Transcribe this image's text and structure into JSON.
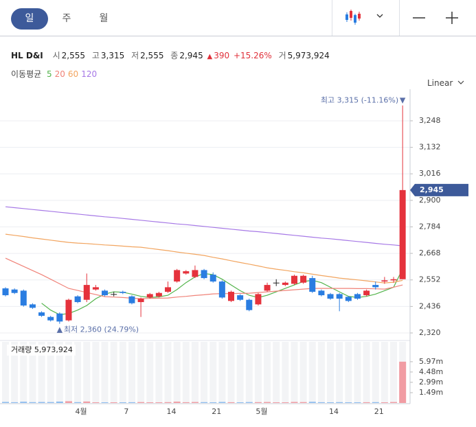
{
  "tabs": [
    "일",
    "주",
    "월"
  ],
  "scale_mode": "Linear",
  "header": {
    "name": "HL D&I",
    "items": [
      {
        "label": "시",
        "value": "2,555"
      },
      {
        "label": "고",
        "value": "3,315"
      },
      {
        "label": "저",
        "value": "2,555"
      },
      {
        "label": "종",
        "value": "2,945"
      }
    ],
    "change_arrow": "▲",
    "change": "390",
    "change_pct": "+15.26%",
    "volume_label": "거",
    "volume": "5,973,924"
  },
  "chart_data": {
    "type": "candlestick",
    "categories": [
      null,
      null,
      null,
      null,
      null,
      null,
      null,
      null,
      "4월",
      null,
      null,
      null,
      null,
      "7",
      null,
      null,
      null,
      null,
      "14",
      null,
      null,
      null,
      null,
      "21",
      null,
      null,
      null,
      null,
      "5월",
      null,
      null,
      null,
      null,
      null,
      null,
      null,
      "14",
      null,
      null,
      null,
      null,
      "21",
      null,
      null,
      null
    ],
    "open": [
      2515,
      2510,
      2505,
      2445,
      2410,
      2390,
      2405,
      2375,
      2480,
      2465,
      2510,
      2505,
      2490,
      2500,
      2480,
      2455,
      2475,
      2480,
      2500,
      2545,
      2580,
      2565,
      2595,
      2575,
      2545,
      2460,
      2485,
      2465,
      2445,
      2505,
      2540,
      2530,
      2535,
      2540,
      2560,
      2505,
      2490,
      2490,
      2478,
      2490,
      2485,
      2530,
      2545,
      2550,
      2555
    ],
    "high": [
      2520,
      2515,
      2510,
      2450,
      2415,
      2395,
      2410,
      2470,
      2485,
      2580,
      2530,
      2510,
      2500,
      2505,
      2485,
      2475,
      2495,
      2500,
      2545,
      2600,
      2595,
      2615,
      2600,
      2585,
      2550,
      2505,
      2490,
      2470,
      2495,
      2540,
      2555,
      2545,
      2575,
      2575,
      2570,
      2510,
      2495,
      2495,
      2482,
      2495,
      2510,
      2545,
      2565,
      2565,
      3315
    ],
    "low": [
      2480,
      2490,
      2435,
      2425,
      2390,
      2370,
      2360,
      2370,
      2450,
      2455,
      2505,
      2480,
      2480,
      2490,
      2445,
      2390,
      2470,
      2475,
      2495,
      2540,
      2575,
      2560,
      2555,
      2540,
      2470,
      2455,
      2460,
      2415,
      2440,
      2500,
      2525,
      2525,
      2530,
      2535,
      2495,
      2480,
      2465,
      2415,
      2455,
      2465,
      2480,
      2510,
      2535,
      2540,
      2555
    ],
    "close": [
      2485,
      2495,
      2440,
      2430,
      2395,
      2375,
      2370,
      2465,
      2455,
      2530,
      2520,
      2485,
      2490,
      2495,
      2450,
      2470,
      2490,
      2495,
      2520,
      2595,
      2590,
      2595,
      2560,
      2545,
      2475,
      2500,
      2465,
      2420,
      2490,
      2530,
      2540,
      2540,
      2570,
      2570,
      2500,
      2485,
      2470,
      2470,
      2460,
      2470,
      2505,
      2520,
      2550,
      2555,
      2945
    ],
    "up_color": "#e5323c",
    "down_color": "#2a7de1",
    "flat_color": "#222222",
    "ylim": [
      2305,
      3356
    ],
    "yticks": [
      {
        "value": 2320,
        "label": "2,320"
      },
      {
        "value": 2436,
        "label": "2,436"
      },
      {
        "value": 2552,
        "label": "2,552"
      },
      {
        "value": 2668,
        "label": "2,668"
      },
      {
        "value": 2784,
        "label": "2,784"
      },
      {
        "value": 2900,
        "label": "2,900"
      },
      {
        "value": 3016,
        "label": "3,016"
      },
      {
        "value": 3132,
        "label": "3,132"
      },
      {
        "value": 3248,
        "label": "3,248"
      }
    ],
    "grid": true,
    "moving_average_label": "이동평균",
    "series": [
      {
        "name": "5",
        "color": "#52b34a",
        "values": [
          null,
          null,
          null,
          null,
          2450,
          2420,
          2400,
          2405,
          2420,
          2440,
          2470,
          2490,
          2500,
          2498,
          2490,
          2480,
          2475,
          2478,
          2485,
          2510,
          2540,
          2565,
          2580,
          2575,
          2555,
          2530,
          2505,
          2485,
          2475,
          2485,
          2500,
          2515,
          2530,
          2545,
          2550,
          2540,
          2520,
          2500,
          2480,
          2475,
          2480,
          2490,
          2505,
          2520,
          2600
        ]
      },
      {
        "name": "20",
        "color": "#f08278",
        "values": [
          2647,
          2629,
          2611,
          2593,
          2575,
          2555,
          2535,
          2515,
          2506,
          2497,
          2488,
          2479,
          2477,
          2475,
          2472,
          2470,
          2471,
          2472,
          2473,
          2477,
          2480,
          2484,
          2487,
          2491,
          2492,
          2492,
          2493,
          2494,
          2497,
          2500,
          2503,
          2506,
          2509,
          2512,
          2515,
          2515,
          2515,
          2515,
          2515,
          2514,
          2514,
          2513,
          2512,
          2520,
          2530
        ]
      },
      {
        "name": "60",
        "color": "#f2a45e",
        "values": [
          2752,
          2747,
          2742,
          2736,
          2731,
          2726,
          2721,
          2716,
          2713,
          2711,
          2708,
          2705,
          2703,
          2700,
          2697,
          2695,
          2690,
          2685,
          2680,
          2674,
          2669,
          2664,
          2659,
          2651,
          2644,
          2636,
          2628,
          2621,
          2613,
          2605,
          2599,
          2594,
          2588,
          2583,
          2577,
          2571,
          2566,
          2560,
          2556,
          2552,
          2548,
          2543,
          2539,
          2542,
          2550
        ]
      },
      {
        "name": "120",
        "color": "#a678e6",
        "values": [
          2872,
          2868,
          2864,
          2860,
          2856,
          2852,
          2848,
          2844,
          2840,
          2836,
          2832,
          2828,
          2825,
          2821,
          2817,
          2813,
          2809,
          2805,
          2801,
          2797,
          2794,
          2790,
          2786,
          2782,
          2778,
          2774,
          2770,
          2766,
          2763,
          2759,
          2755,
          2751,
          2747,
          2743,
          2739,
          2735,
          2732,
          2728,
          2724,
          2720,
          2716,
          2712,
          2708,
          2705,
          2701
        ]
      }
    ],
    "annotations": {
      "max": "최고 3,315 (-11.16%)",
      "max_arrow": "▼",
      "min_arrow": "▲",
      "min": "최저 2,360 (24.79%)"
    },
    "last_price_label": "2,945",
    "volume": {
      "title": "거래량 5,973,924",
      "values": [
        150000,
        110000,
        180000,
        120000,
        140000,
        130000,
        200000,
        250000,
        120000,
        210000,
        100000,
        90000,
        80000,
        90000,
        110000,
        130000,
        90000,
        95000,
        120000,
        190000,
        110000,
        140000,
        120000,
        100000,
        150000,
        110000,
        90000,
        130000,
        120000,
        140000,
        80000,
        90000,
        150000,
        130000,
        170000,
        110000,
        100000,
        120000,
        90000,
        100000,
        110000,
        120000,
        100000,
        140000,
        5973924
      ],
      "up_color": "#f19ca3",
      "down_color": "#8cbcef",
      "ylim": [
        0,
        8840000
      ],
      "yticks": [
        {
          "value": 1490000,
          "label": "1.49m"
        },
        {
          "value": 2990000,
          "label": "2.99m"
        },
        {
          "value": 4480000,
          "label": "4.48m"
        },
        {
          "value": 5970000,
          "label": "5.97m"
        }
      ]
    }
  }
}
